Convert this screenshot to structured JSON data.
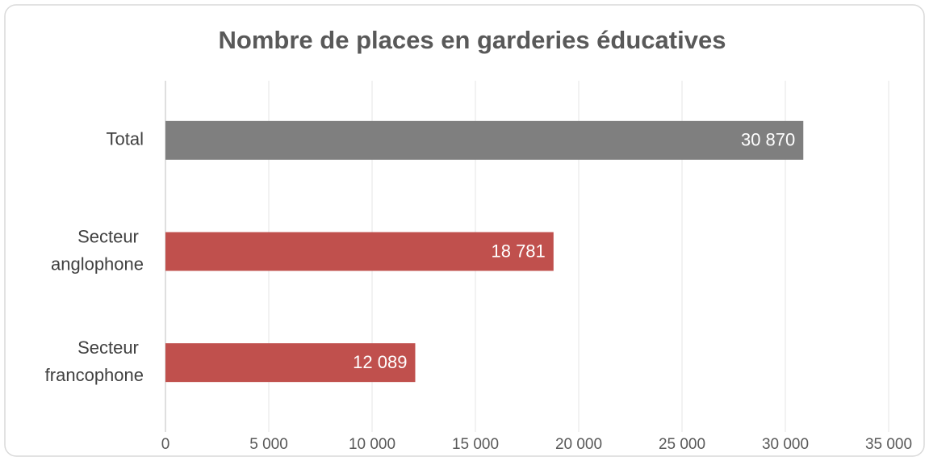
{
  "chart_data": {
    "type": "hbar",
    "title": "Nombre de places en garderies éducatives",
    "categories": [
      "Total",
      "Secteur anglophone",
      "Secteur francophone"
    ],
    "values": [
      30870,
      18781,
      12089
    ],
    "value_labels": [
      "30 870",
      "18 781",
      "12 089"
    ],
    "colors": [
      "#7f7f7f",
      "#c0504d",
      "#c0504d"
    ],
    "xlim": [
      0,
      35000
    ],
    "xticks": [
      0,
      {
        "value": 5000,
        "label": "5 000"
      },
      {
        "value": 10000,
        "label": "10 000"
      },
      {
        "value": 15000,
        "label": "15 000"
      },
      {
        "value": 20000,
        "label": "20 000"
      },
      {
        "value": 25000,
        "label": "25 000"
      },
      {
        "value": 30000,
        "label": "30 000"
      },
      {
        "value": 35000,
        "label": "35 000"
      }
    ],
    "grid": true
  }
}
